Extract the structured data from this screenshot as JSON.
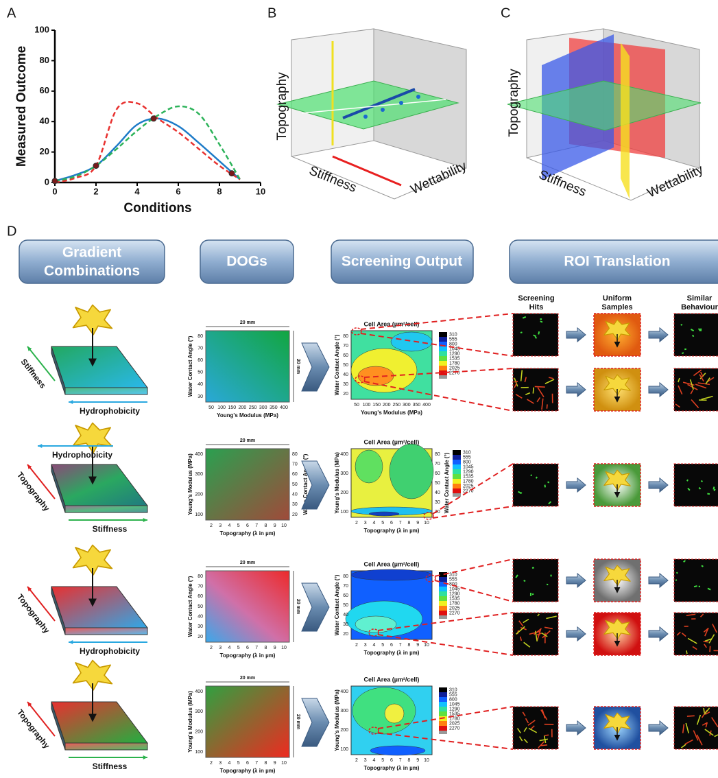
{
  "panel_labels": [
    "A",
    "B",
    "C",
    "D"
  ],
  "chart_data": {
    "type": "line",
    "xlabel": "Conditions",
    "ylabel": "Measured Outcome",
    "x": [
      0,
      1,
      2,
      3,
      4,
      5,
      6,
      7,
      8,
      9
    ],
    "series": [
      {
        "color": "#1e7bc8",
        "dashed": false,
        "values": [
          1,
          5,
          11,
          24,
          38,
          42,
          37,
          26,
          14,
          2
        ]
      },
      {
        "color": "#e8312f",
        "dashed": true,
        "values": [
          0,
          3,
          11,
          48,
          52,
          42,
          33,
          22,
          11,
          2
        ]
      },
      {
        "color": "#2db35a",
        "dashed": true,
        "values": [
          1,
          4,
          11,
          22,
          34,
          44,
          50,
          45,
          25,
          2
        ]
      }
    ],
    "points": {
      "color": "#7a1a1a",
      "x": [
        0,
        2,
        4.8,
        8.6
      ],
      "values": [
        1,
        11,
        42,
        6
      ]
    },
    "xlim": [
      0,
      10
    ],
    "xticks": [
      0,
      2,
      4,
      6,
      8,
      10
    ],
    "ylim": [
      0,
      100
    ],
    "yticks": [
      0,
      20,
      40,
      60,
      80,
      100
    ]
  },
  "panel_b": {
    "axes": [
      "Topography",
      "Stiffness",
      "Wettability"
    ]
  },
  "panel_c": {
    "axes": [
      "Topography",
      "Stiffness",
      "Wettability"
    ]
  },
  "headers": {
    "gradients": [
      "Gradient",
      "Combinations"
    ],
    "dogs": "DOGs",
    "screening": "Screening Output",
    "roi": "ROI Translation"
  },
  "roi_columns": [
    [
      "Screening",
      "Hits"
    ],
    [
      "Uniform",
      "Samples"
    ],
    [
      "Similar",
      "Behaviour"
    ]
  ],
  "gradients": [
    {
      "side": {
        "text": "Stiffness",
        "color": "#2bb24c"
      },
      "bottom": {
        "text": "Hydrophobicity",
        "color": "#29a8e0"
      }
    },
    {
      "top": {
        "text": "Hydrophobicity",
        "color": "#29a8e0"
      },
      "side": {
        "text": "Topography",
        "color": "#e02020"
      },
      "bottom": {
        "text": "Stiffness",
        "color": "#2bb24c"
      }
    },
    {
      "side": {
        "text": "Topography",
        "color": "#e02020"
      },
      "bottom": {
        "text": "Hydrophobicity",
        "color": "#29a8e0"
      }
    },
    {
      "side": {
        "text": "Topography",
        "color": "#e02020"
      },
      "bottom": {
        "text": "Stiffness",
        "color": "#2bb24c"
      }
    }
  ],
  "dogs": [
    {
      "top": "20 mm",
      "side": "20 mm",
      "ylabel": "Water Contact Angle (°)",
      "yticks": [
        30,
        40,
        50,
        60,
        70,
        80
      ],
      "xlabel": "Young's Modulus (MPa)",
      "xticks": [
        50,
        100,
        150,
        200,
        250,
        300,
        350,
        400
      ]
    },
    {
      "top": "20 mm",
      "ylabel": "Young's Modulus (MPa)",
      "yticks": [
        100,
        200,
        300,
        400
      ],
      "y2label": "Water Contact Angle (°)",
      "y2ticks": [
        20,
        30,
        40,
        50,
        60,
        70,
        80
      ],
      "xlabel": "Topography (λ in µm)",
      "xticks": [
        2,
        3,
        4,
        5,
        6,
        7,
        8,
        9,
        10
      ]
    },
    {
      "top": "20 mm",
      "side": "20 mm",
      "ylabel": "Water Contact Angle (°)",
      "yticks": [
        20,
        30,
        40,
        50,
        60,
        70,
        80
      ],
      "xlabel": "Topography (λ in µm)",
      "xticks": [
        2,
        3,
        4,
        5,
        6,
        7,
        8,
        9,
        10
      ]
    },
    {
      "top": "20 mm",
      "side": "20 mm",
      "ylabel": "Young's Modulus (MPa)",
      "yticks": [
        100,
        200,
        300,
        400
      ],
      "xlabel": "Topography (λ in µm)",
      "xticks": [
        2,
        3,
        4,
        5,
        6,
        7,
        8,
        9,
        10
      ]
    }
  ],
  "screening": [
    {
      "title": "Cell Area (µm²/cell)",
      "ylabel": "Water Contact Angle (°)",
      "yticks": [
        20,
        30,
        40,
        50,
        60,
        70,
        80
      ],
      "xlabel": "Young's Modulus (MPa)",
      "xticks": [
        50,
        100,
        150,
        200,
        250,
        300,
        350,
        400
      ],
      "colorbar": [
        310,
        555,
        800,
        1045,
        1290,
        1535,
        1780,
        2025,
        2270
      ]
    },
    {
      "title": "Cell Area (µm²/cell)",
      "ylabel": "Young's Modulus (MPa)",
      "yticks": [
        100,
        200,
        300,
        400
      ],
      "y2label": "Water Contact Angle (°)",
      "y2ticks": [
        20,
        30,
        40,
        50,
        60,
        70,
        80
      ],
      "xlabel": "Topography (λ in µm)",
      "xticks": [
        2,
        3,
        4,
        5,
        6,
        7,
        8,
        9,
        10
      ],
      "colorbar": [
        310,
        555,
        800,
        1045,
        1290,
        1535,
        1780,
        2025,
        2270
      ]
    },
    {
      "title": "Cell Area (µm²/cell)",
      "ylabel": "Water Contact Angle (°)",
      "yticks": [
        20,
        30,
        40,
        50,
        60,
        70,
        80
      ],
      "xlabel": "Topography (λ in µm)",
      "xticks": [
        2,
        3,
        4,
        5,
        6,
        7,
        8,
        9,
        10
      ],
      "colorbar": [
        310,
        555,
        800,
        1045,
        1290,
        1535,
        1780,
        2025,
        2270
      ]
    },
    {
      "title": "Cell Area (µm²/cell)",
      "ylabel": "Young's Modulus (MPa)",
      "yticks": [
        100,
        200,
        300,
        400
      ],
      "xlabel": "Topography (λ in µm)",
      "xticks": [
        2,
        3,
        4,
        5,
        6,
        7,
        8,
        9,
        10
      ],
      "colorbar": [
        310,
        555,
        800,
        1045,
        1290,
        1535,
        1780,
        2025,
        2270
      ]
    }
  ]
}
